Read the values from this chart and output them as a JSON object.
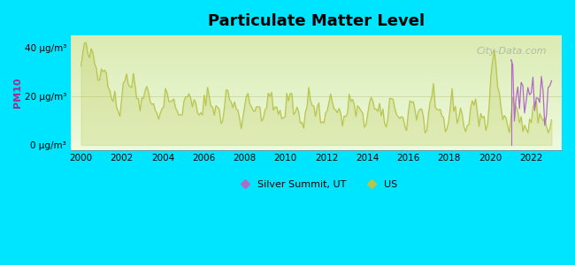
{
  "title": "Particulate Matter Level",
  "ylabel": "PM10",
  "ytick_labels": [
    "0 μg/m³",
    "20 μg/m³",
    "40 μg/m³"
  ],
  "ytick_values": [
    0,
    20,
    40
  ],
  "ylim": [
    -2,
    45
  ],
  "xlim": [
    1999.5,
    2023.5
  ],
  "xtick_values": [
    2000,
    2002,
    2004,
    2006,
    2008,
    2010,
    2012,
    2014,
    2016,
    2018,
    2020,
    2022
  ],
  "background_color": "#00e5ff",
  "us_line_color": "#b8c44a",
  "ss_line_color": "#b06cc4",
  "watermark_text": "City-Data.com",
  "legend_ss": "Silver Summit, UT",
  "legend_us": "US"
}
